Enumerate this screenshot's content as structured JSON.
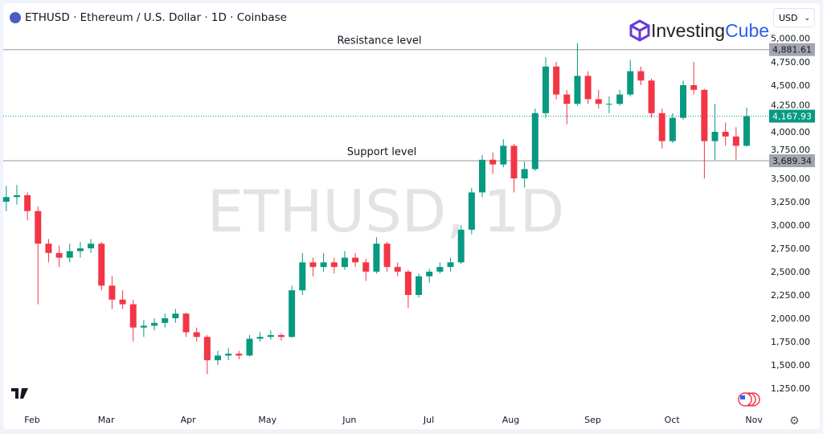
{
  "header": {
    "title": "ETHUSD · Ethereum / U.S. Dollar · 1D · Coinbase",
    "currency": "USD",
    "brand_a": "Investing",
    "brand_b": "Cube"
  },
  "chart_data": {
    "type": "candlestick",
    "watermark": "ETHUSD, 1D",
    "ylim": [
      1100,
      5000
    ],
    "y_ticks": [
      1250,
      1500,
      1750,
      2000,
      2250,
      2500,
      2750,
      3000,
      3250,
      3500,
      3750,
      4000,
      4250,
      4500,
      4750,
      5000
    ],
    "y_tick_labels": [
      "1,250.00",
      "1,500.00",
      "1,750.00",
      "2,000.00",
      "2,250.00",
      "2,500.00",
      "2,750.00",
      "3,000.00",
      "3,250.00",
      "3,500.00",
      "3,750.00",
      "4,000.00",
      "4,250.00",
      "4,500.00",
      "4,750.00",
      "5,000.00"
    ],
    "x_ticks": [
      {
        "label": "Feb",
        "date": "2025-02-01"
      },
      {
        "label": "Mar",
        "date": "2025-03-01"
      },
      {
        "label": "Apr",
        "date": "2025-04-01"
      },
      {
        "label": "May",
        "date": "2025-05-01"
      },
      {
        "label": "Jun",
        "date": "2025-06-01"
      },
      {
        "label": "Jul",
        "date": "2025-07-01"
      },
      {
        "label": "Aug",
        "date": "2025-08-01"
      },
      {
        "label": "Sep",
        "date": "2025-09-01"
      },
      {
        "label": "Oct",
        "date": "2025-10-01"
      },
      {
        "label": "Nov",
        "date": "2025-11-01"
      }
    ],
    "levels": [
      {
        "name": "Resistance level",
        "value": 4881.61,
        "label": "4,881.61"
      },
      {
        "name": "Support level",
        "value": 3689.34,
        "label": "3,689.34"
      }
    ],
    "last_price": {
      "value": 4167.93,
      "label": "4,167.93"
    },
    "colors": {
      "up": "#089981",
      "down": "#f23645"
    },
    "candles_ohlc": [
      [
        "2025-01-21",
        3250,
        3420,
        3150,
        3300
      ],
      [
        "2025-01-25",
        3300,
        3430,
        3220,
        3320
      ],
      [
        "2025-01-29",
        3320,
        3350,
        3050,
        3150
      ],
      [
        "2025-02-02",
        3150,
        3200,
        2150,
        2800
      ],
      [
        "2025-02-06",
        2800,
        2850,
        2600,
        2700
      ],
      [
        "2025-02-10",
        2700,
        2780,
        2550,
        2650
      ],
      [
        "2025-02-14",
        2650,
        2800,
        2600,
        2720
      ],
      [
        "2025-02-18",
        2720,
        2820,
        2650,
        2750
      ],
      [
        "2025-02-22",
        2750,
        2850,
        2700,
        2800
      ],
      [
        "2025-02-26",
        2800,
        2820,
        2300,
        2350
      ],
      [
        "2025-03-02",
        2350,
        2450,
        2100,
        2200
      ],
      [
        "2025-03-06",
        2200,
        2300,
        2100,
        2150
      ],
      [
        "2025-03-10",
        2150,
        2200,
        1750,
        1900
      ],
      [
        "2025-03-14",
        1900,
        1980,
        1800,
        1920
      ],
      [
        "2025-03-18",
        1920,
        2000,
        1870,
        1950
      ],
      [
        "2025-03-22",
        1950,
        2050,
        1900,
        2000
      ],
      [
        "2025-03-26",
        2000,
        2100,
        1950,
        2050
      ],
      [
        "2025-03-30",
        2050,
        2060,
        1800,
        1850
      ],
      [
        "2025-04-03",
        1850,
        1900,
        1750,
        1800
      ],
      [
        "2025-04-07",
        1800,
        1820,
        1400,
        1550
      ],
      [
        "2025-04-11",
        1550,
        1650,
        1500,
        1600
      ],
      [
        "2025-04-15",
        1600,
        1680,
        1550,
        1620
      ],
      [
        "2025-04-19",
        1620,
        1650,
        1560,
        1600
      ],
      [
        "2025-04-23",
        1600,
        1820,
        1590,
        1780
      ],
      [
        "2025-04-27",
        1780,
        1850,
        1750,
        1800
      ],
      [
        "2025-05-01",
        1800,
        1870,
        1770,
        1820
      ],
      [
        "2025-05-05",
        1820,
        1840,
        1760,
        1800
      ],
      [
        "2025-05-09",
        1800,
        2350,
        1790,
        2300
      ],
      [
        "2025-05-13",
        2300,
        2700,
        2250,
        2600
      ],
      [
        "2025-05-17",
        2600,
        2650,
        2450,
        2550
      ],
      [
        "2025-05-21",
        2550,
        2700,
        2500,
        2600
      ],
      [
        "2025-05-25",
        2600,
        2650,
        2480,
        2550
      ],
      [
        "2025-05-29",
        2550,
        2720,
        2520,
        2650
      ],
      [
        "2025-06-02",
        2650,
        2700,
        2550,
        2600
      ],
      [
        "2025-06-06",
        2600,
        2640,
        2400,
        2500
      ],
      [
        "2025-06-10",
        2500,
        2870,
        2480,
        2800
      ],
      [
        "2025-06-14",
        2800,
        2820,
        2500,
        2550
      ],
      [
        "2025-06-18",
        2550,
        2600,
        2450,
        2500
      ],
      [
        "2025-06-22",
        2500,
        2520,
        2110,
        2250
      ],
      [
        "2025-06-26",
        2250,
        2480,
        2220,
        2450
      ],
      [
        "2025-06-30",
        2450,
        2530,
        2380,
        2500
      ],
      [
        "2025-07-04",
        2500,
        2600,
        2480,
        2550
      ],
      [
        "2025-07-08",
        2550,
        2650,
        2500,
        2600
      ],
      [
        "2025-07-12",
        2600,
        3000,
        2580,
        2950
      ],
      [
        "2025-07-16",
        2950,
        3400,
        2900,
        3350
      ],
      [
        "2025-07-20",
        3350,
        3750,
        3300,
        3700
      ],
      [
        "2025-07-24",
        3700,
        3780,
        3550,
        3650
      ],
      [
        "2025-07-28",
        3650,
        3920,
        3620,
        3850
      ],
      [
        "2025-08-01",
        3850,
        3870,
        3350,
        3500
      ],
      [
        "2025-08-05",
        3500,
        3680,
        3400,
        3600
      ],
      [
        "2025-08-09",
        3600,
        4250,
        3580,
        4200
      ],
      [
        "2025-08-13",
        4200,
        4800,
        4150,
        4700
      ],
      [
        "2025-08-17",
        4700,
        4750,
        4350,
        4400
      ],
      [
        "2025-08-21",
        4400,
        4450,
        4080,
        4300
      ],
      [
        "2025-08-25",
        4300,
        4950,
        4280,
        4600
      ],
      [
        "2025-08-29",
        4600,
        4650,
        4300,
        4350
      ],
      [
        "2025-09-02",
        4350,
        4450,
        4250,
        4300
      ],
      [
        "2025-09-06",
        4300,
        4380,
        4200,
        4300
      ],
      [
        "2025-09-10",
        4300,
        4450,
        4280,
        4400
      ],
      [
        "2025-09-14",
        4400,
        4770,
        4380,
        4650
      ],
      [
        "2025-09-18",
        4650,
        4700,
        4500,
        4550
      ],
      [
        "2025-09-22",
        4550,
        4570,
        4150,
        4200
      ],
      [
        "2025-09-26",
        4200,
        4250,
        3820,
        3900
      ],
      [
        "2025-09-30",
        3900,
        4200,
        3880,
        4150
      ],
      [
        "2025-10-04",
        4150,
        4550,
        4130,
        4500
      ],
      [
        "2025-10-08",
        4500,
        4750,
        4400,
        4450
      ],
      [
        "2025-10-12",
        4450,
        4460,
        3500,
        3900
      ],
      [
        "2025-10-16",
        3900,
        4300,
        3700,
        4000
      ],
      [
        "2025-10-20",
        4000,
        4100,
        3850,
        3950
      ],
      [
        "2025-10-24",
        3950,
        4050,
        3700,
        3850
      ],
      [
        "2025-10-28",
        3850,
        4260,
        3840,
        4168
      ]
    ]
  }
}
